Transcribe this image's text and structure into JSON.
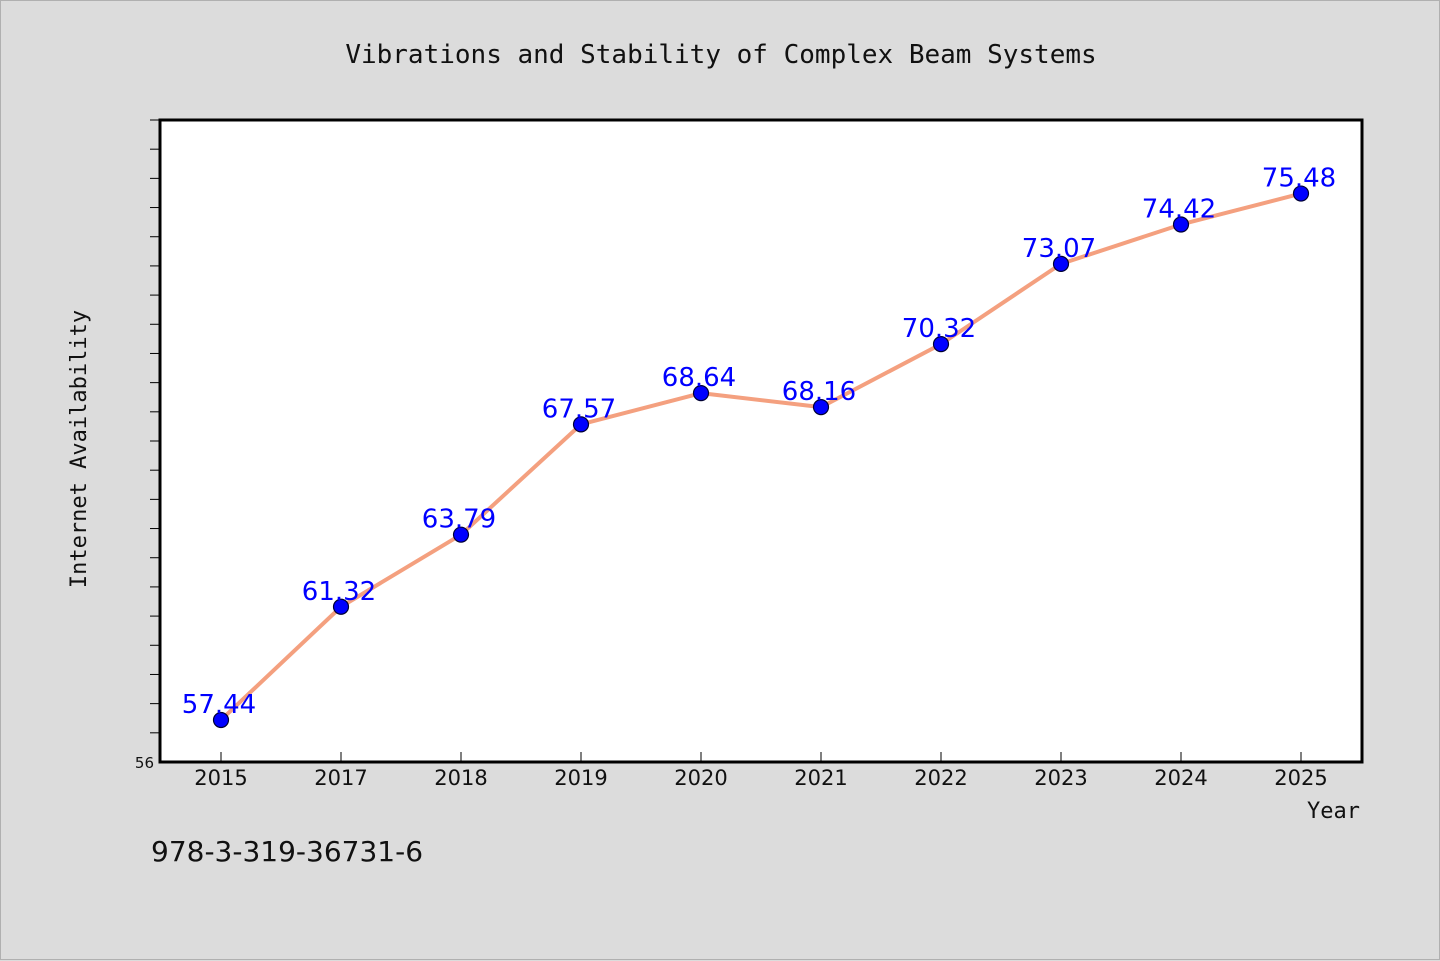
{
  "chart_data": {
    "type": "line",
    "title": "Vibrations and Stability of Complex Beam Systems",
    "xlabel": "Year",
    "ylabel": "Internet Availability",
    "categories": [
      "2015",
      "2017",
      "2018",
      "2019",
      "2020",
      "2021",
      "2022",
      "2023",
      "2024",
      "2025"
    ],
    "series": [
      {
        "values": [
          57.44,
          61.32,
          63.79,
          67.57,
          68.64,
          68.16,
          70.32,
          73.07,
          74.42,
          75.48
        ]
      }
    ],
    "data_labels": [
      "57.44",
      "61.32",
      "63.79",
      "67.57",
      "68.64",
      "68.16",
      "70.32",
      "73.07",
      "74.42",
      "75.48"
    ],
    "ylim": [
      56,
      78
    ],
    "y_tick_labels": [
      "56"
    ],
    "grid": false,
    "legend": "none",
    "colors": {
      "line": "#f4a07f",
      "marker": "#0000ff",
      "label": "#0000ff",
      "plot_bg": "#ffffff",
      "page_bg": "#dcdcdc"
    }
  },
  "footer": {
    "isbn": "978-3-319-36731-6"
  }
}
